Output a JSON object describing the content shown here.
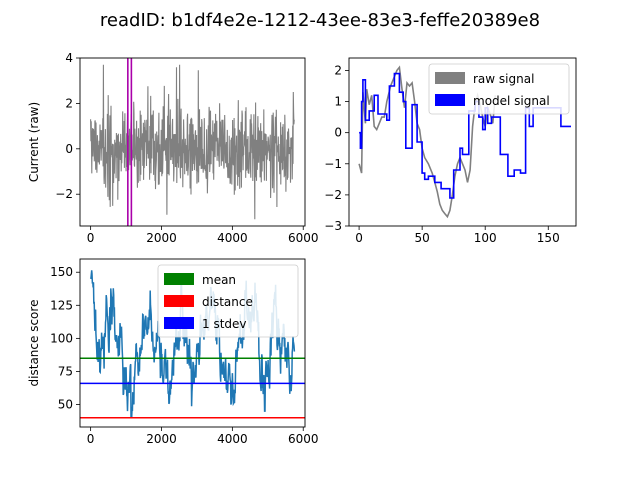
{
  "figure": {
    "title": "readID: b1df4e2e-1212-43ee-83e3-feffe20389e8"
  },
  "colors": {
    "raw": "#808080",
    "model": "#0000ff",
    "marker": "#aa00aa",
    "distance_line": "#1f77b4",
    "mean": "#008000",
    "distance": "#ff0000",
    "stdev": "#0000ff"
  },
  "chart_data": [
    {
      "id": "raw_full",
      "type": "line",
      "title": "",
      "xlabel": "",
      "ylabel": "Current (raw)",
      "xlim": [
        -300,
        6050
      ],
      "ylim": [
        -3.4,
        4.0
      ],
      "xticks": [
        0,
        2000,
        4000,
        6000
      ],
      "xtick_labels": [
        "0",
        "2000",
        "4000",
        "6000"
      ],
      "yticks": [
        -2,
        0,
        2,
        4
      ],
      "ytick_labels": [
        "−2",
        "0",
        "2",
        "4"
      ],
      "series": [
        {
          "color": "#808080",
          "x_start": 0,
          "x_end": 5750,
          "noise_approx": {
            "mean": 0,
            "stdev": 1,
            "min": -3.1,
            "max": 3.7
          }
        }
      ],
      "vlines": [
        {
          "x": 1050,
          "color": "#aa00aa"
        },
        {
          "x": 1150,
          "color": "#aa00aa"
        }
      ]
    },
    {
      "id": "model_fit",
      "type": "line",
      "title": "",
      "xlabel": "",
      "ylabel": "",
      "xlim": [
        -8,
        172
      ],
      "ylim": [
        -3.0,
        2.4
      ],
      "xticks": [
        0,
        50,
        100,
        150
      ],
      "xtick_labels": [
        "0",
        "50",
        "100",
        "150"
      ],
      "yticks": [
        -3,
        -2,
        -1,
        0,
        1,
        2
      ],
      "ytick_labels": [
        "−3",
        "−2",
        "−1",
        "0",
        "1",
        "2"
      ],
      "legend": {
        "position": "top-right"
      },
      "series": [
        {
          "name": "raw signal",
          "color": "#808080",
          "x": [
            0,
            2,
            3,
            5,
            6,
            8,
            10,
            12,
            14,
            16,
            18,
            20,
            22,
            25,
            28,
            30,
            32,
            34,
            36,
            38,
            40,
            42,
            44,
            46,
            48,
            50,
            52,
            55,
            58,
            60,
            62,
            64,
            66,
            68,
            70,
            72,
            74,
            76,
            78,
            80,
            82,
            84,
            86,
            88,
            90,
            92,
            94,
            96,
            98,
            100,
            102,
            104,
            106,
            108
          ],
          "y": [
            -1.0,
            -1.3,
            1.3,
            0.3,
            1.4,
            0.9,
            1.2,
            0.2,
            0.1,
            0.3,
            0.5,
            0.5,
            1.0,
            1.5,
            1.8,
            2.0,
            2.1,
            1.4,
            0.8,
            1.6,
            1.5,
            1.6,
            1.0,
            0.3,
            0.1,
            -0.5,
            -0.8,
            -1.0,
            -1.3,
            -1.6,
            -1.9,
            -2.3,
            -2.5,
            -2.6,
            -2.7,
            -2.5,
            -2.0,
            -1.4,
            -1.0,
            -0.8,
            -1.0,
            -1.2,
            -1.6,
            -1.2,
            0.2,
            0.9,
            1.2,
            0.9,
            0.5,
            0.2,
            0.8,
            0.6,
            0.3,
            1.2
          ]
        },
        {
          "name": "model signal",
          "color": "#0000ff",
          "step": true,
          "x": [
            0,
            1,
            2,
            3,
            5,
            8,
            12,
            15,
            22,
            24,
            28,
            32,
            35,
            37,
            42,
            46,
            50,
            52,
            55,
            60,
            65,
            72,
            75,
            80,
            82,
            87,
            92,
            95,
            98,
            100,
            102,
            105,
            112,
            118,
            123,
            128,
            132,
            135,
            138,
            160,
            168
          ],
          "y": [
            0.0,
            -0.5,
            1.0,
            1.7,
            0.4,
            0.7,
            1.2,
            0.6,
            0.4,
            1.5,
            1.9,
            1.3,
            1.0,
            -0.5,
            0.9,
            -0.3,
            -1.3,
            -1.5,
            -1.4,
            -1.6,
            -1.8,
            -2.1,
            -1.2,
            -0.5,
            -0.7,
            0.7,
            1.0,
            0.5,
            0.1,
            0.8,
            0.3,
            0.5,
            -0.7,
            -1.4,
            -1.2,
            -1.3,
            0.8,
            0.2,
            0.8,
            0.2,
            0.2
          ]
        }
      ]
    },
    {
      "id": "distance",
      "type": "line",
      "title": "",
      "xlabel": "",
      "ylabel": "distance score",
      "xlim": [
        -300,
        6050
      ],
      "ylim": [
        33,
        160
      ],
      "xticks": [
        0,
        2000,
        4000,
        6000
      ],
      "xtick_labels": [
        "0",
        "2000",
        "4000",
        "6000"
      ],
      "yticks": [
        50,
        75,
        100,
        125,
        150
      ],
      "ytick_labels": [
        "50",
        "75",
        "100",
        "125",
        "150"
      ],
      "legend": {
        "position": "top-right"
      },
      "series": [
        {
          "color": "#1f77b4",
          "x_start": 0,
          "x_end": 5750,
          "noise_approx": {
            "mean": 85,
            "min": 40,
            "max": 155
          }
        }
      ],
      "hlines": [
        {
          "name": "mean",
          "y": 85,
          "color": "#008000"
        },
        {
          "name": "distance",
          "y": 40,
          "color": "#ff0000"
        },
        {
          "name": "1 stdev",
          "y": 66,
          "color": "#0000ff"
        }
      ]
    }
  ]
}
